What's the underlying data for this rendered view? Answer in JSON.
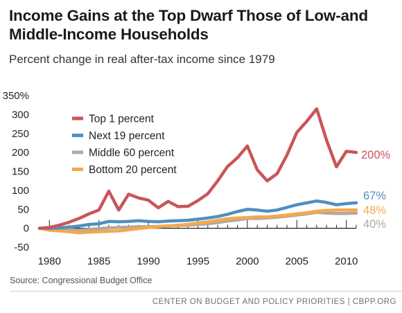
{
  "header": {
    "title": "Income Gains at the Top Dwarf Those of Low-and Middle-Income Households",
    "subtitle": "Percent change in real after-tax income since 1979"
  },
  "source_note": "Source: Congressional Budget Office",
  "footer": "CENTER ON BUDGET AND POLICY PRIORITIES | CBPP.ORG",
  "colors": {
    "top1": "#c9555a",
    "next19": "#4f8fc1",
    "middle60": "#b4a89d",
    "bottom20": "#f5a84c",
    "axis": "#231f20"
  },
  "chart_data": {
    "type": "line",
    "xlim": [
      1979,
      2011
    ],
    "ylim": [
      -50,
      350
    ],
    "x_ticks": [
      1980,
      1985,
      1990,
      1995,
      2000,
      2005,
      2010
    ],
    "y_ticks": [
      -50,
      0,
      50,
      100,
      150,
      200,
      250,
      300,
      350
    ],
    "y_tick_labels": [
      "-50",
      "0",
      "50",
      "100",
      "150",
      "200",
      "250",
      "300",
      "350%"
    ],
    "legend_position": "top-left",
    "x": [
      1979,
      1980,
      1981,
      1982,
      1983,
      1984,
      1985,
      1986,
      1987,
      1988,
      1989,
      1990,
      1991,
      1992,
      1993,
      1994,
      1995,
      1996,
      1997,
      1998,
      1999,
      2000,
      2001,
      2002,
      2003,
      2004,
      2005,
      2006,
      2007,
      2008,
      2009,
      2010,
      2011
    ],
    "series": [
      {
        "name": "Top 1 percent",
        "color_key": "top1",
        "end_label": "200%",
        "values": [
          0,
          2,
          8,
          16,
          26,
          38,
          48,
          98,
          48,
          90,
          80,
          74,
          54,
          71,
          57,
          58,
          73,
          91,
          125,
          163,
          186,
          217,
          154,
          125,
          144,
          193,
          253,
          282,
          315,
          232,
          162,
          203,
          200
        ]
      },
      {
        "name": "Next 19 percent",
        "color_key": "next19",
        "end_label": "67%",
        "values": [
          0,
          0,
          1,
          3,
          6,
          10,
          12,
          18,
          17,
          18,
          20,
          18,
          17,
          19,
          20,
          21,
          24,
          27,
          31,
          37,
          44,
          50,
          48,
          45,
          48,
          55,
          62,
          67,
          72,
          68,
          62,
          65,
          67
        ]
      },
      {
        "name": "Middle 60 percent",
        "color_key": "middle60",
        "end_label": "40%",
        "values": [
          0,
          -2,
          -3,
          -4,
          -5,
          -3,
          -1,
          1,
          2,
          3,
          4,
          4,
          5,
          6,
          7,
          8,
          10,
          12,
          15,
          19,
          22,
          26,
          26,
          27,
          29,
          32,
          35,
          38,
          42,
          40,
          39,
          39,
          40
        ]
      },
      {
        "name": "Bottom 20 percent",
        "color_key": "bottom20",
        "end_label": "48%",
        "values": [
          0,
          -5,
          -7,
          -9,
          -12,
          -10,
          -9,
          -8,
          -7,
          -4,
          -1,
          2,
          4,
          6,
          8,
          10,
          14,
          17,
          21,
          25,
          27,
          28,
          30,
          30,
          32,
          35,
          38,
          41,
          45,
          47,
          48,
          48,
          48
        ]
      }
    ]
  }
}
